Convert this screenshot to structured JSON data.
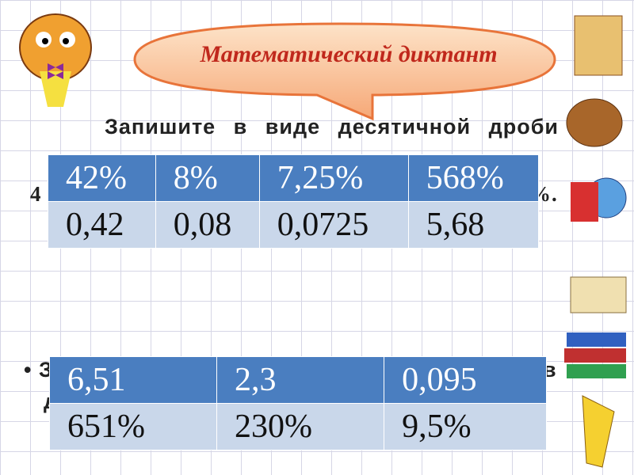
{
  "title": "Математический диктант",
  "task1": {
    "text": "Запишите в виде десятичной дроби",
    "fragment_left": "4",
    "fragment_right": "%."
  },
  "table1": {
    "header": [
      "42%",
      "8%",
      "7,25%",
      "568%"
    ],
    "row": [
      "0,42",
      "0,08",
      "0,0725",
      "5,68"
    ]
  },
  "task2": {
    "fragment_1": "З",
    "fragment_2": "в",
    "fragment_3": "д"
  },
  "table2": {
    "header": [
      "6,51",
      "2,3",
      "0,095"
    ],
    "row": [
      "651%",
      "230%",
      "9,5%"
    ]
  }
}
